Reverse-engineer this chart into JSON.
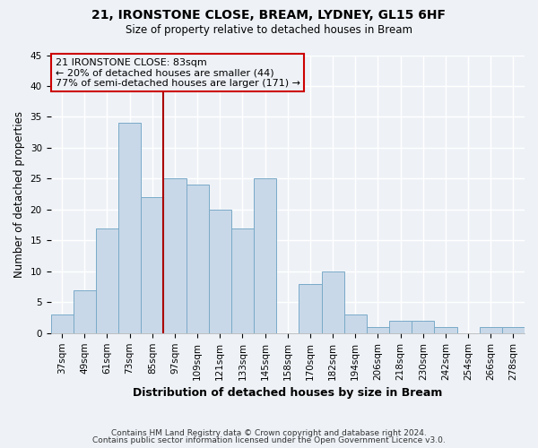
{
  "title": "21, IRONSTONE CLOSE, BREAM, LYDNEY, GL15 6HF",
  "subtitle": "Size of property relative to detached houses in Bream",
  "xlabel": "Distribution of detached houses by size in Bream",
  "ylabel": "Number of detached properties",
  "footnote1": "Contains HM Land Registry data © Crown copyright and database right 2024.",
  "footnote2": "Contains public sector information licensed under the Open Government Licence v3.0.",
  "bin_labels": [
    "37sqm",
    "49sqm",
    "61sqm",
    "73sqm",
    "85sqm",
    "97sqm",
    "109sqm",
    "121sqm",
    "133sqm",
    "145sqm",
    "158sqm",
    "170sqm",
    "182sqm",
    "194sqm",
    "206sqm",
    "218sqm",
    "230sqm",
    "242sqm",
    "254sqm",
    "266sqm",
    "278sqm"
  ],
  "bar_values": [
    3,
    7,
    17,
    34,
    22,
    25,
    24,
    20,
    17,
    25,
    0,
    8,
    10,
    3,
    1,
    2,
    2,
    1,
    0,
    1,
    1
  ],
  "bar_color": "#c8d8e8",
  "bar_edgecolor": "#7aaac8",
  "ylim": [
    0,
    45
  ],
  "yticks": [
    0,
    5,
    10,
    15,
    20,
    25,
    30,
    35,
    40,
    45
  ],
  "marker_line_color": "#aa0000",
  "annotation_line1": "21 IRONSTONE CLOSE: 83sqm",
  "annotation_line2": "← 20% of detached houses are smaller (44)",
  "annotation_line3": "77% of semi-detached houses are larger (171) →",
  "box_edgecolor": "#cc0000",
  "background_color": "#eef2f7",
  "grid_color": "#ffffff",
  "marker_bar_index": 4,
  "title_fontsize": 10,
  "subtitle_fontsize": 8.5,
  "ylabel_fontsize": 8.5,
  "xlabel_fontsize": 9,
  "tick_fontsize": 7.5,
  "footnote_fontsize": 6.5
}
